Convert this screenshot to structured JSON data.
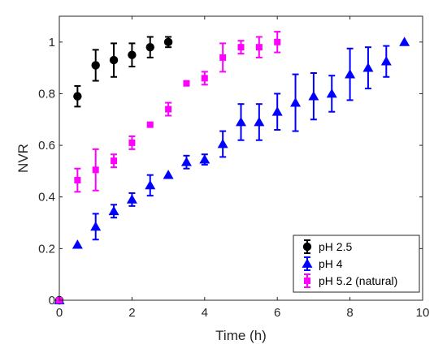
{
  "chart_data": {
    "type": "scatter",
    "title": "",
    "xlabel": "Time (h)",
    "ylabel": "NVR",
    "xlim": [
      0,
      10
    ],
    "ylim": [
      0,
      1.1
    ],
    "xticks": [
      0,
      2,
      4,
      6,
      8,
      10
    ],
    "yticks": [
      0,
      0.2,
      0.4,
      0.6,
      0.8,
      1
    ],
    "ytick_labels": [
      "0",
      "0.2",
      "0.4",
      "0.6",
      "0.8",
      "1"
    ],
    "grid": false,
    "legend_position": "bottom-right",
    "series": [
      {
        "name": "pH 2.5",
        "color": "#000000",
        "marker": "circle",
        "points": [
          {
            "x": 0,
            "y": 0,
            "err": 0
          },
          {
            "x": 0.5,
            "y": 0.79,
            "err": 0.04
          },
          {
            "x": 1,
            "y": 0.91,
            "err": 0.06
          },
          {
            "x": 1.5,
            "y": 0.93,
            "err": 0.065
          },
          {
            "x": 2,
            "y": 0.95,
            "err": 0.045
          },
          {
            "x": 2.5,
            "y": 0.98,
            "err": 0.04
          },
          {
            "x": 3,
            "y": 1.0,
            "err": 0.02
          }
        ]
      },
      {
        "name": "pH 4",
        "color": "#0000ff",
        "marker": "triangle",
        "points": [
          {
            "x": 0,
            "y": 0,
            "err": 0
          },
          {
            "x": 0.5,
            "y": 0.215,
            "err": 0
          },
          {
            "x": 1,
            "y": 0.285,
            "err": 0.05
          },
          {
            "x": 1.5,
            "y": 0.345,
            "err": 0.025
          },
          {
            "x": 2,
            "y": 0.39,
            "err": 0.025
          },
          {
            "x": 2.5,
            "y": 0.445,
            "err": 0.04
          },
          {
            "x": 3,
            "y": 0.485,
            "err": 0
          },
          {
            "x": 3.5,
            "y": 0.535,
            "err": 0.025
          },
          {
            "x": 4,
            "y": 0.545,
            "err": 0.02
          },
          {
            "x": 4.5,
            "y": 0.605,
            "err": 0.05
          },
          {
            "x": 5,
            "y": 0.69,
            "err": 0.07
          },
          {
            "x": 5.5,
            "y": 0.69,
            "err": 0.07
          },
          {
            "x": 6,
            "y": 0.73,
            "err": 0.07
          },
          {
            "x": 6.5,
            "y": 0.765,
            "err": 0.11
          },
          {
            "x": 7,
            "y": 0.79,
            "err": 0.09
          },
          {
            "x": 7.5,
            "y": 0.8,
            "err": 0.07
          },
          {
            "x": 8,
            "y": 0.875,
            "err": 0.1
          },
          {
            "x": 8.5,
            "y": 0.9,
            "err": 0.08
          },
          {
            "x": 9,
            "y": 0.925,
            "err": 0.06
          },
          {
            "x": 9.5,
            "y": 1.0,
            "err": 0
          }
        ]
      },
      {
        "name": "pH 5.2 (natural)",
        "color": "#ff00ff",
        "marker": "square",
        "points": [
          {
            "x": 0,
            "y": 0,
            "err": 0
          },
          {
            "x": 0.5,
            "y": 0.465,
            "err": 0.045
          },
          {
            "x": 1,
            "y": 0.505,
            "err": 0.08
          },
          {
            "x": 1.5,
            "y": 0.54,
            "err": 0.025
          },
          {
            "x": 2,
            "y": 0.61,
            "err": 0.025
          },
          {
            "x": 2.5,
            "y": 0.68,
            "err": 0
          },
          {
            "x": 3,
            "y": 0.74,
            "err": 0.025
          },
          {
            "x": 3.5,
            "y": 0.84,
            "err": 0
          },
          {
            "x": 4,
            "y": 0.86,
            "err": 0.025
          },
          {
            "x": 4.5,
            "y": 0.94,
            "err": 0.055
          },
          {
            "x": 5,
            "y": 0.98,
            "err": 0.025
          },
          {
            "x": 5.5,
            "y": 0.98,
            "err": 0.04
          },
          {
            "x": 6,
            "y": 1.0,
            "err": 0.04
          }
        ]
      }
    ]
  }
}
